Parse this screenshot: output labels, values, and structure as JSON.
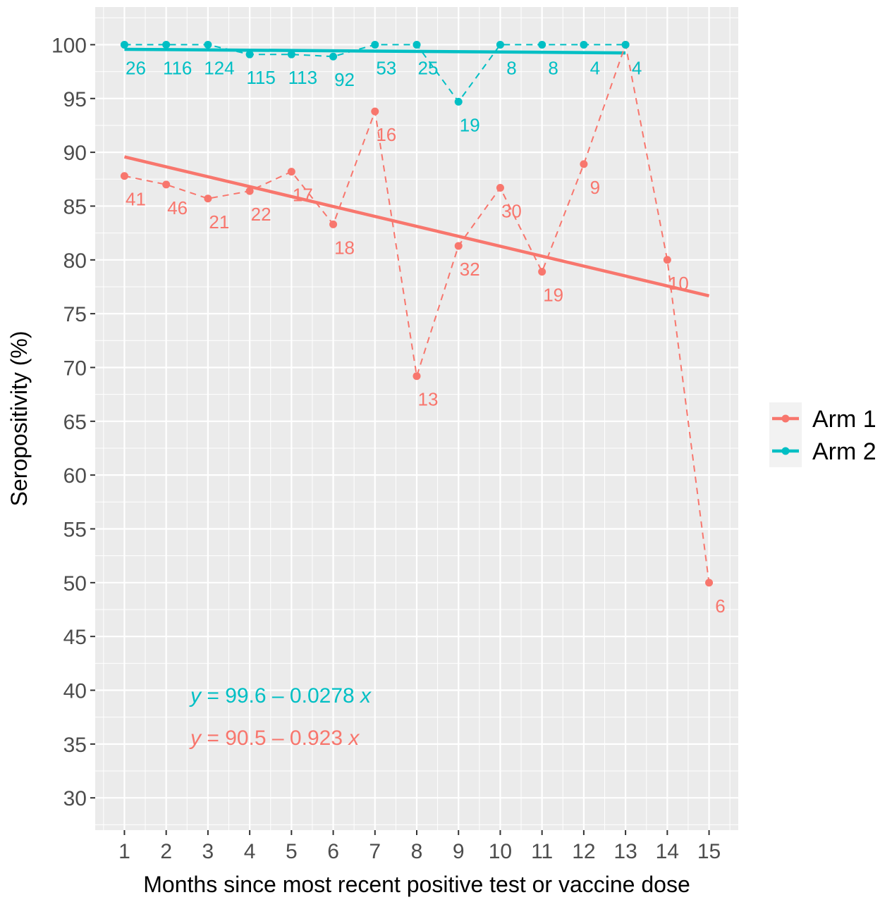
{
  "chart_data": {
    "type": "line",
    "xlabel": "Months since most recent positive test or vaccine dose",
    "ylabel": "Seropositivity (%)",
    "xlim": [
      0.3,
      15.7
    ],
    "ylim": [
      27.0,
      103.5
    ],
    "x_ticks": [
      1,
      2,
      3,
      4,
      5,
      6,
      7,
      8,
      9,
      10,
      11,
      12,
      13,
      14,
      15
    ],
    "y_ticks": [
      30,
      35,
      40,
      45,
      50,
      55,
      60,
      65,
      70,
      75,
      80,
      85,
      90,
      95,
      100
    ],
    "grid": true,
    "legend_position": "right",
    "series": [
      {
        "name": "Arm 1",
        "color": "#F8766D",
        "x": [
          1,
          2,
          3,
          4,
          5,
          6,
          7,
          8,
          9,
          10,
          11,
          12,
          13,
          14,
          15
        ],
        "y": [
          87.8,
          87.0,
          85.7,
          86.4,
          88.2,
          83.3,
          93.8,
          69.2,
          81.3,
          86.7,
          78.9,
          88.9,
          100,
          80.0,
          50.0
        ],
        "n": [
          "41",
          "46",
          "21",
          "22",
          "17",
          "18",
          "16",
          "13",
          "32",
          "30",
          "19",
          "9",
          "4",
          "10",
          "6"
        ],
        "fit": {
          "intercept": 90.5,
          "slope": -0.923,
          "x_range": [
            1,
            15
          ]
        },
        "equation": {
          "y": "y",
          "eq": " = 90.5 – 0.923 ",
          "x": "x"
        }
      },
      {
        "name": "Arm 2",
        "color": "#00BFC4",
        "x": [
          1,
          2,
          3,
          4,
          5,
          6,
          7,
          8,
          9,
          10,
          11,
          12,
          13
        ],
        "y": [
          100,
          100,
          100,
          99.1,
          99.1,
          98.9,
          100,
          100,
          94.7,
          100,
          100,
          100,
          100
        ],
        "n": [
          "26",
          "116",
          "124",
          "115",
          "113",
          "92",
          "53",
          "25",
          "19",
          "8",
          "8",
          "4",
          "4"
        ],
        "fit": {
          "intercept": 99.6,
          "slope": -0.0278,
          "x_range": [
            1,
            13
          ]
        },
        "equation": {
          "y": "y",
          "eq": " = 99.6 – 0.0278 ",
          "x": "x"
        }
      }
    ]
  }
}
